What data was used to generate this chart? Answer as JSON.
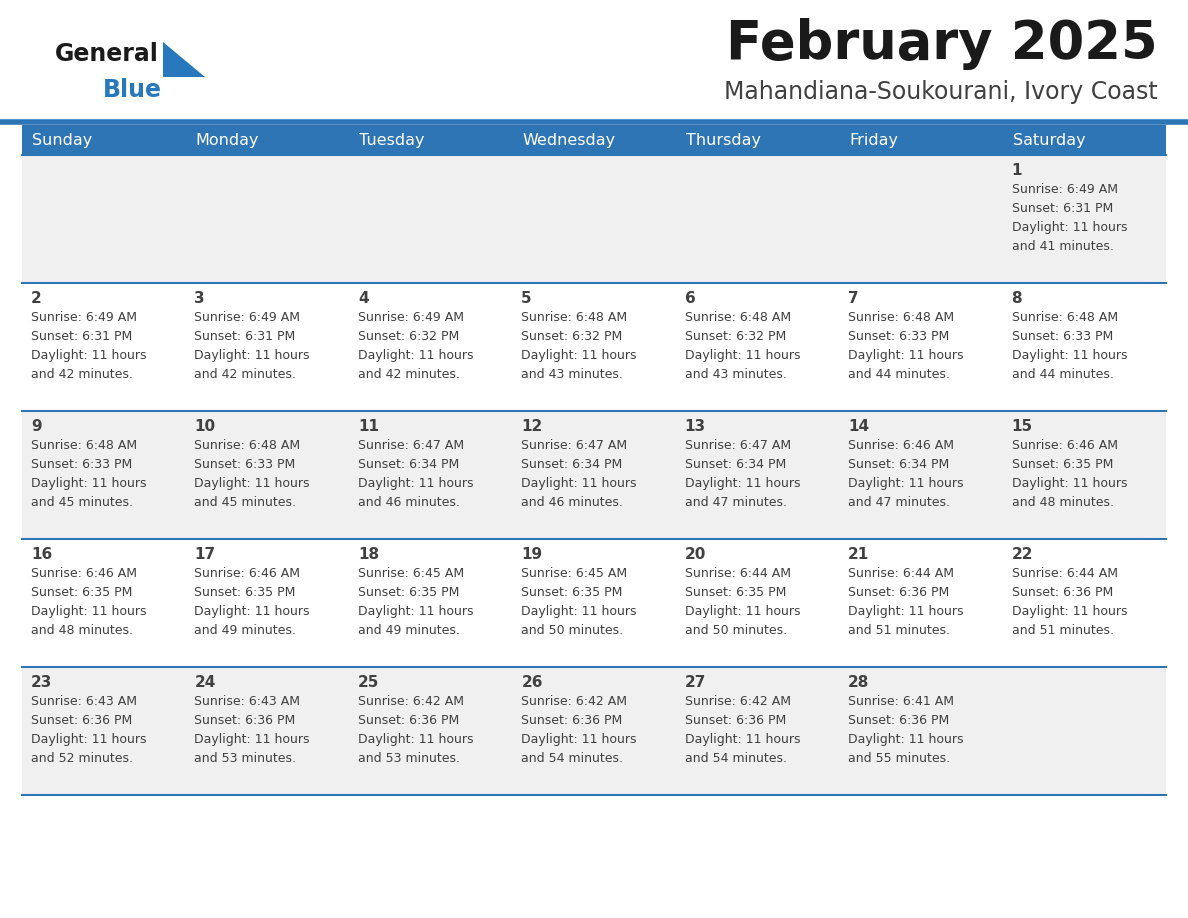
{
  "title": "February 2025",
  "subtitle": "Mahandiana-Soukourani, Ivory Coast",
  "header_bg": "#2E75B6",
  "header_text": "#FFFFFF",
  "day_names": [
    "Sunday",
    "Monday",
    "Tuesday",
    "Wednesday",
    "Thursday",
    "Friday",
    "Saturday"
  ],
  "cell_bg_week0": "#F0F0F0",
  "cell_bg_week1": "#FFFFFF",
  "cell_bg_week2": "#F0F0F0",
  "cell_bg_week3": "#FFFFFF",
  "cell_bg_week4": "#F0F0F0",
  "cell_border": "#2E75B6",
  "text_color": "#404040",
  "title_color": "#1a1a1a",
  "subtitle_color": "#404040",
  "logo_black": "#1a1a1a",
  "logo_blue": "#2878BE",
  "logo_triangle": "#2878BE",
  "calendar": [
    [
      null,
      null,
      null,
      null,
      null,
      null,
      {
        "day": 1,
        "sunrise": "6:49 AM",
        "sunset": "6:31 PM",
        "daylight": "11 hours and 41 minutes."
      }
    ],
    [
      {
        "day": 2,
        "sunrise": "6:49 AM",
        "sunset": "6:31 PM",
        "daylight": "11 hours and 42 minutes."
      },
      {
        "day": 3,
        "sunrise": "6:49 AM",
        "sunset": "6:31 PM",
        "daylight": "11 hours and 42 minutes."
      },
      {
        "day": 4,
        "sunrise": "6:49 AM",
        "sunset": "6:32 PM",
        "daylight": "11 hours and 42 minutes."
      },
      {
        "day": 5,
        "sunrise": "6:48 AM",
        "sunset": "6:32 PM",
        "daylight": "11 hours and 43 minutes."
      },
      {
        "day": 6,
        "sunrise": "6:48 AM",
        "sunset": "6:32 PM",
        "daylight": "11 hours and 43 minutes."
      },
      {
        "day": 7,
        "sunrise": "6:48 AM",
        "sunset": "6:33 PM",
        "daylight": "11 hours and 44 minutes."
      },
      {
        "day": 8,
        "sunrise": "6:48 AM",
        "sunset": "6:33 PM",
        "daylight": "11 hours and 44 minutes."
      }
    ],
    [
      {
        "day": 9,
        "sunrise": "6:48 AM",
        "sunset": "6:33 PM",
        "daylight": "11 hours and 45 minutes."
      },
      {
        "day": 10,
        "sunrise": "6:48 AM",
        "sunset": "6:33 PM",
        "daylight": "11 hours and 45 minutes."
      },
      {
        "day": 11,
        "sunrise": "6:47 AM",
        "sunset": "6:34 PM",
        "daylight": "11 hours and 46 minutes."
      },
      {
        "day": 12,
        "sunrise": "6:47 AM",
        "sunset": "6:34 PM",
        "daylight": "11 hours and 46 minutes."
      },
      {
        "day": 13,
        "sunrise": "6:47 AM",
        "sunset": "6:34 PM",
        "daylight": "11 hours and 47 minutes."
      },
      {
        "day": 14,
        "sunrise": "6:46 AM",
        "sunset": "6:34 PM",
        "daylight": "11 hours and 47 minutes."
      },
      {
        "day": 15,
        "sunrise": "6:46 AM",
        "sunset": "6:35 PM",
        "daylight": "11 hours and 48 minutes."
      }
    ],
    [
      {
        "day": 16,
        "sunrise": "6:46 AM",
        "sunset": "6:35 PM",
        "daylight": "11 hours and 48 minutes."
      },
      {
        "day": 17,
        "sunrise": "6:46 AM",
        "sunset": "6:35 PM",
        "daylight": "11 hours and 49 minutes."
      },
      {
        "day": 18,
        "sunrise": "6:45 AM",
        "sunset": "6:35 PM",
        "daylight": "11 hours and 49 minutes."
      },
      {
        "day": 19,
        "sunrise": "6:45 AM",
        "sunset": "6:35 PM",
        "daylight": "11 hours and 50 minutes."
      },
      {
        "day": 20,
        "sunrise": "6:44 AM",
        "sunset": "6:35 PM",
        "daylight": "11 hours and 50 minutes."
      },
      {
        "day": 21,
        "sunrise": "6:44 AM",
        "sunset": "6:36 PM",
        "daylight": "11 hours and 51 minutes."
      },
      {
        "day": 22,
        "sunrise": "6:44 AM",
        "sunset": "6:36 PM",
        "daylight": "11 hours and 51 minutes."
      }
    ],
    [
      {
        "day": 23,
        "sunrise": "6:43 AM",
        "sunset": "6:36 PM",
        "daylight": "11 hours and 52 minutes."
      },
      {
        "day": 24,
        "sunrise": "6:43 AM",
        "sunset": "6:36 PM",
        "daylight": "11 hours and 53 minutes."
      },
      {
        "day": 25,
        "sunrise": "6:42 AM",
        "sunset": "6:36 PM",
        "daylight": "11 hours and 53 minutes."
      },
      {
        "day": 26,
        "sunrise": "6:42 AM",
        "sunset": "6:36 PM",
        "daylight": "11 hours and 54 minutes."
      },
      {
        "day": 27,
        "sunrise": "6:42 AM",
        "sunset": "6:36 PM",
        "daylight": "11 hours and 54 minutes."
      },
      {
        "day": 28,
        "sunrise": "6:41 AM",
        "sunset": "6:36 PM",
        "daylight": "11 hours and 55 minutes."
      },
      null
    ]
  ]
}
